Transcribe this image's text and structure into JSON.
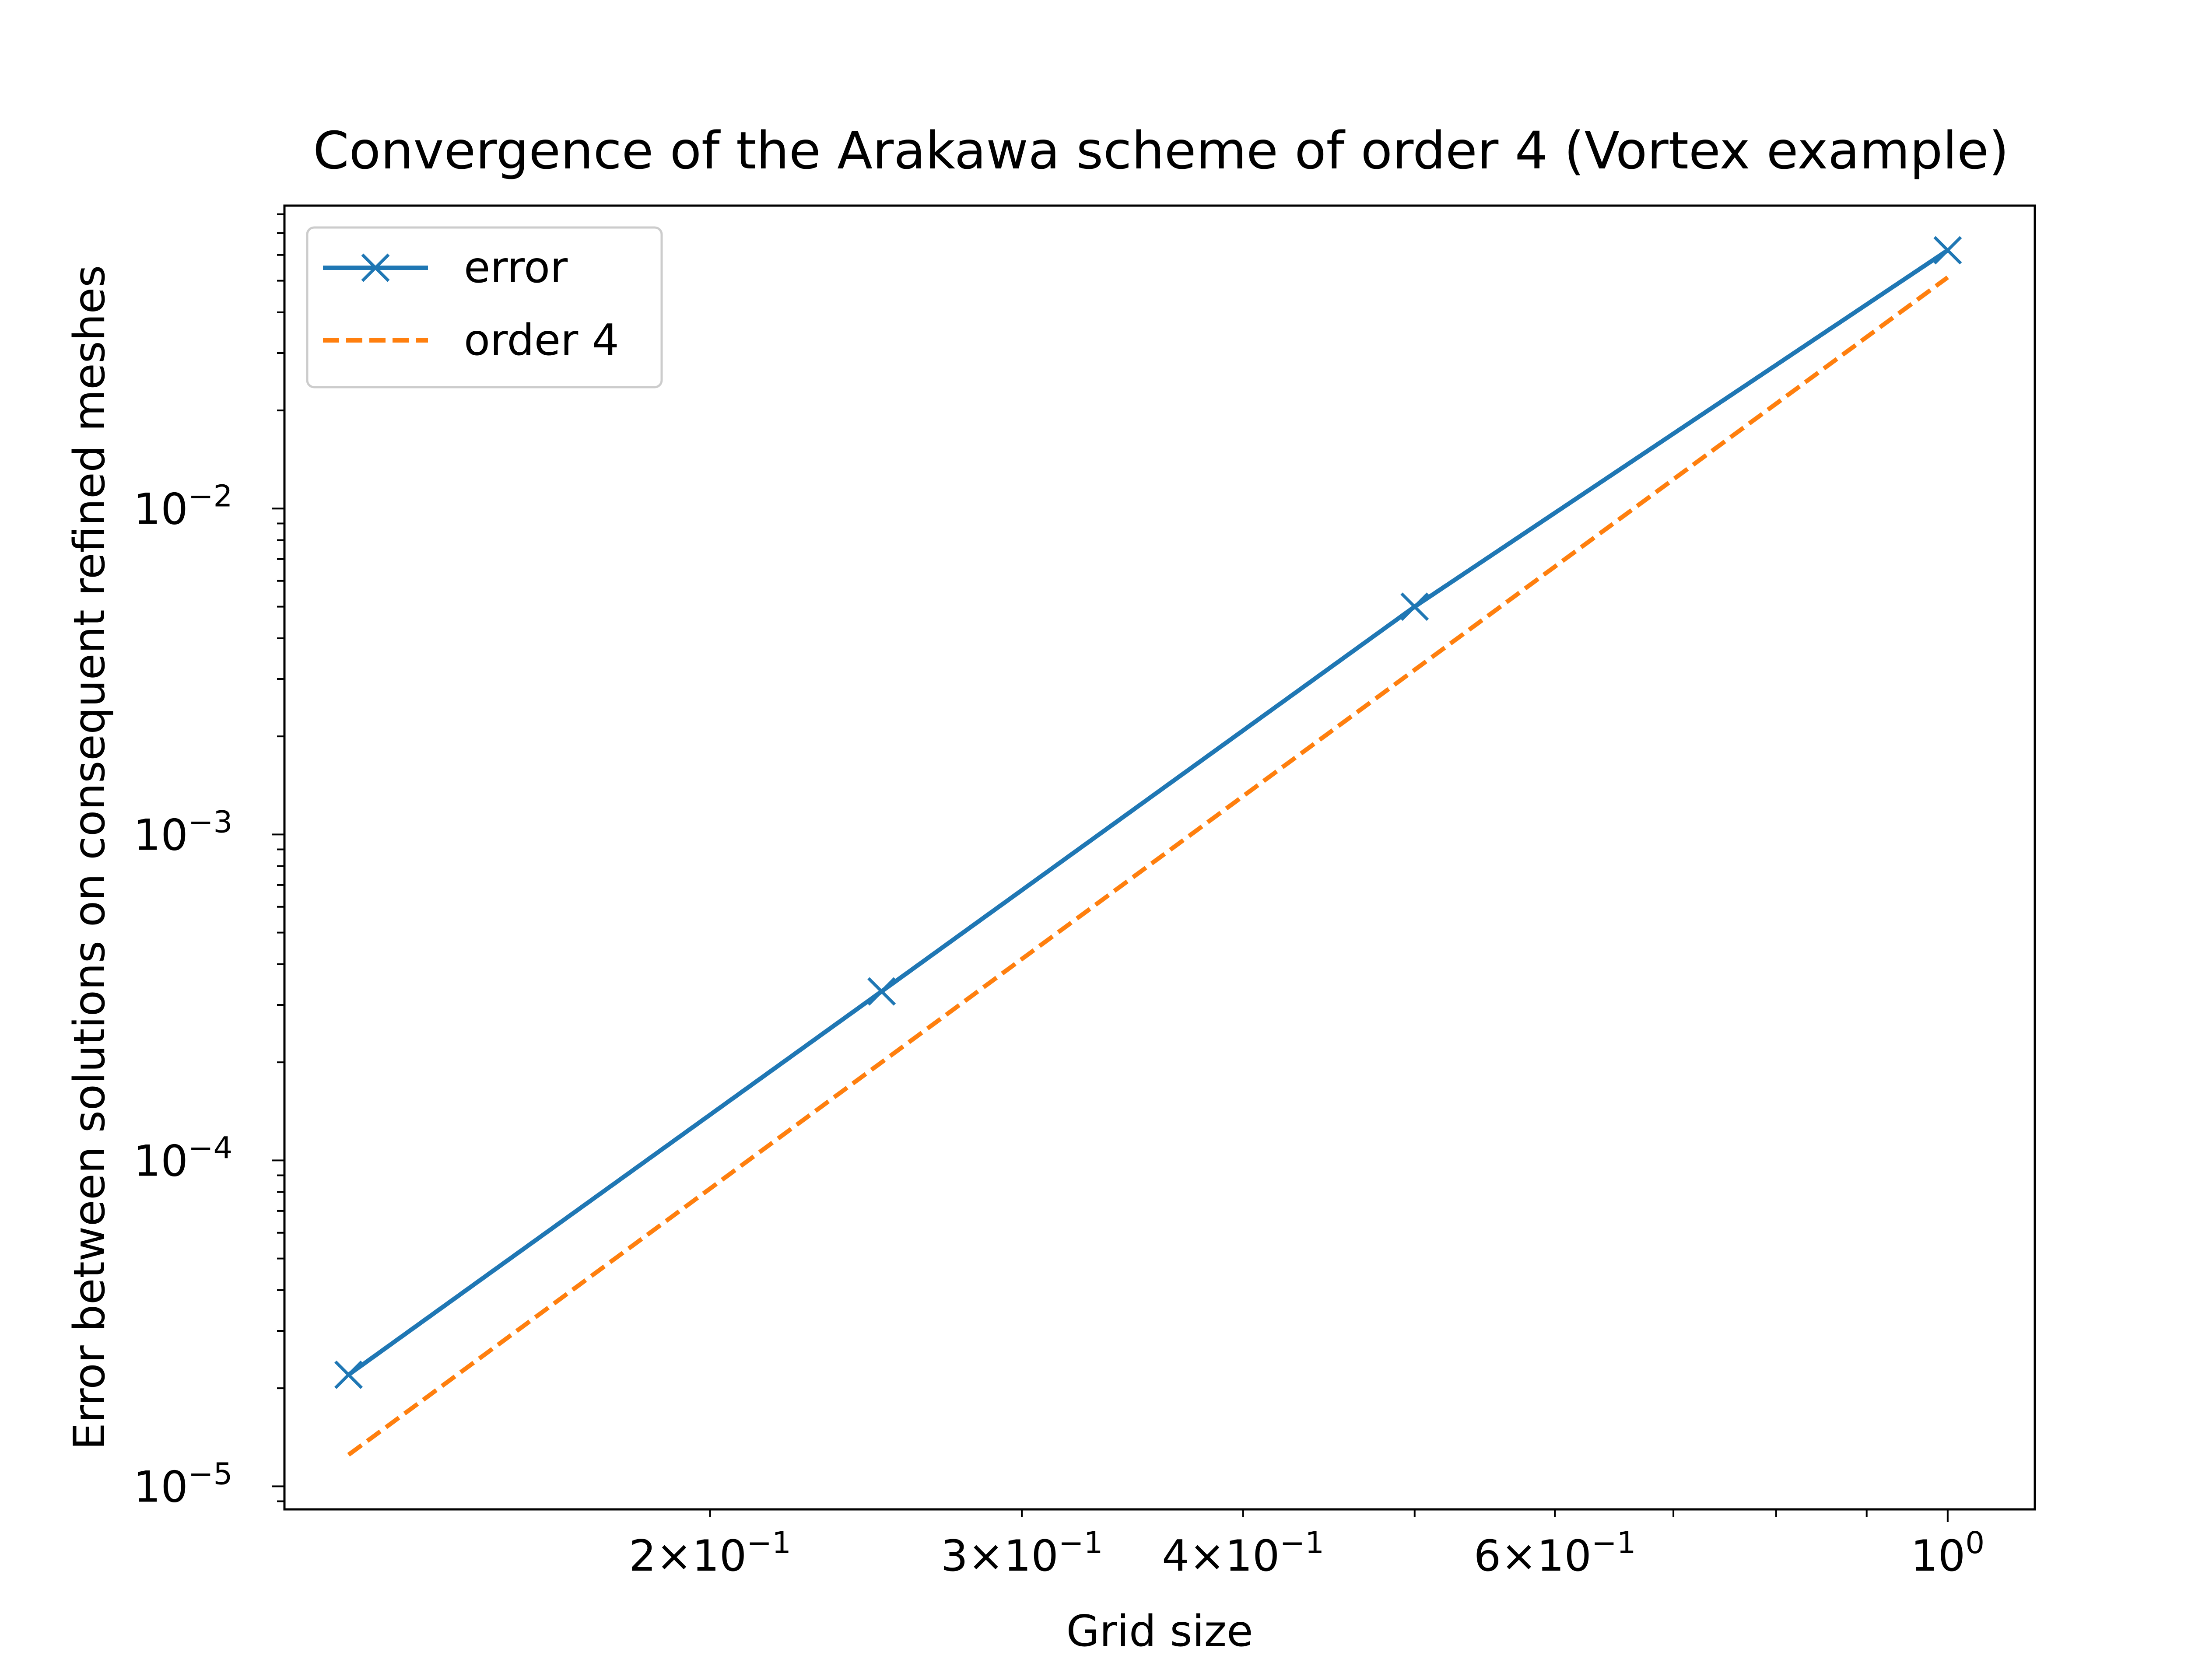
{
  "chart_data": {
    "type": "line",
    "title": "Convergence of the Arakawa scheme of order 4 (Vortex example)",
    "xlabel": "Grid size",
    "ylabel": "Error between solutions on consequent refined meshes",
    "xscale": "log",
    "yscale": "log",
    "xlim": [
      0.115,
      1.12
    ],
    "ylim": [
      8.5e-06,
      0.085
    ],
    "grid": false,
    "legend_position": "top-left",
    "x_ticks": [
      {
        "value": 0.2,
        "mantissa": "2",
        "exponent": "−1"
      },
      {
        "value": 0.3,
        "mantissa": "3",
        "exponent": "−1"
      },
      {
        "value": 0.4,
        "mantissa": "4",
        "exponent": "−1"
      },
      {
        "value": 0.6,
        "mantissa": "6",
        "exponent": "−1"
      },
      {
        "value": 1.0,
        "mantissa": "",
        "exponent": "0"
      }
    ],
    "y_ticks": [
      {
        "value": 1e-05,
        "exponent": "−5"
      },
      {
        "value": 0.0001,
        "exponent": "−4"
      },
      {
        "value": 0.001,
        "exponent": "−3"
      },
      {
        "value": 0.01,
        "exponent": "−2"
      }
    ],
    "series": [
      {
        "name": "error",
        "color": "#1f77b4",
        "style": "solid",
        "marker": "x",
        "x": [
          0.125,
          0.25,
          0.5,
          1.0
        ],
        "y": [
          2.2e-05,
          0.00033,
          0.005,
          0.062
        ]
      },
      {
        "name": "order 4",
        "color": "#ff7f0e",
        "style": "dashed",
        "marker": "none",
        "x": [
          0.125,
          0.25,
          0.5,
          1.0
        ],
        "y": [
          1.25e-05,
          0.0002,
          0.0032,
          0.0512
        ]
      }
    ]
  }
}
